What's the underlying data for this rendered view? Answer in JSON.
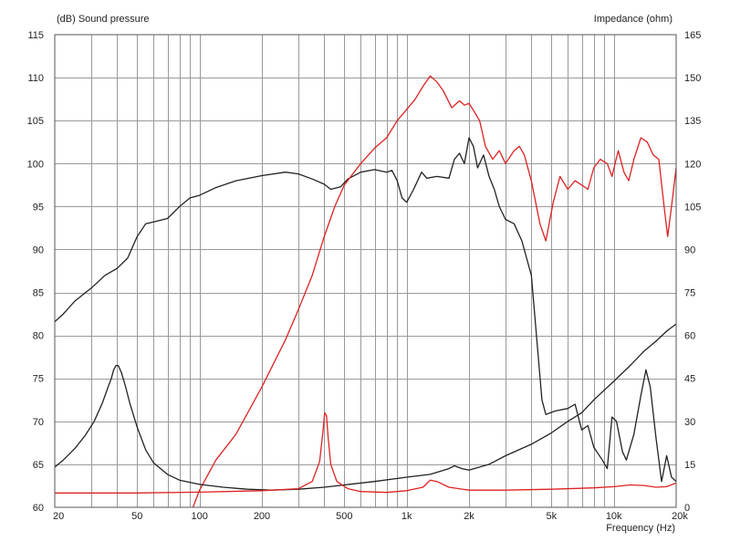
{
  "chart_data": {
    "type": "line",
    "xscale": "log",
    "xlim": [
      20,
      20000
    ],
    "ylim_left": [
      60,
      115
    ],
    "ylim_right": [
      0,
      165
    ],
    "grid": true,
    "ylabel_left": "(dB)  Sound pressure",
    "ylabel_right": "Impedance  (ohm)",
    "xlabel": "Frequency  (Hz)",
    "x_ticks": [
      {
        "value": 20,
        "label": "20"
      },
      {
        "value": 50,
        "label": "50"
      },
      {
        "value": 100,
        "label": "100"
      },
      {
        "value": 200,
        "label": "200"
      },
      {
        "value": 500,
        "label": "500"
      },
      {
        "value": 1000,
        "label": "1k"
      },
      {
        "value": 2000,
        "label": "2k"
      },
      {
        "value": 5000,
        "label": "5k"
      },
      {
        "value": 10000,
        "label": "10k"
      },
      {
        "value": 20000,
        "label": "20k"
      }
    ],
    "y_left_ticks": [
      "60",
      "65",
      "70",
      "75",
      "80",
      "85",
      "90",
      "95",
      "100",
      "105",
      "110",
      "115"
    ],
    "y_right_ticks": [
      "0",
      "15",
      "30",
      "45",
      "60",
      "75",
      "90",
      "105",
      "120",
      "135",
      "150",
      "165"
    ],
    "series": [
      {
        "color": "#222222",
        "axis": "left",
        "points": [
          [
            20,
            81.6
          ],
          [
            22,
            82.5
          ],
          [
            25,
            84.0
          ],
          [
            30,
            85.5
          ],
          [
            35,
            87.0
          ],
          [
            40,
            87.8
          ],
          [
            45,
            89.0
          ],
          [
            50,
            91.5
          ],
          [
            55,
            93.0
          ],
          [
            60,
            93.2
          ],
          [
            70,
            93.6
          ],
          [
            80,
            95.0
          ],
          [
            90,
            96.0
          ],
          [
            100,
            96.3
          ],
          [
            120,
            97.2
          ],
          [
            150,
            98.0
          ],
          [
            200,
            98.6
          ],
          [
            260,
            99.0
          ],
          [
            300,
            98.8
          ],
          [
            350,
            98.2
          ],
          [
            400,
            97.6
          ],
          [
            430,
            97.0
          ],
          [
            480,
            97.3
          ],
          [
            520,
            98.2
          ],
          [
            600,
            99.0
          ],
          [
            700,
            99.3
          ],
          [
            800,
            99.0
          ],
          [
            850,
            99.2
          ],
          [
            900,
            98.0
          ],
          [
            950,
            96.0
          ],
          [
            1000,
            95.5
          ],
          [
            1080,
            97.0
          ],
          [
            1180,
            99.0
          ],
          [
            1250,
            98.3
          ],
          [
            1400,
            98.5
          ],
          [
            1600,
            98.3
          ],
          [
            1700,
            100.5
          ],
          [
            1800,
            101.2
          ],
          [
            1900,
            100.0
          ],
          [
            2000,
            103.0
          ],
          [
            2100,
            102.0
          ],
          [
            2200,
            99.5
          ],
          [
            2350,
            101.0
          ],
          [
            2500,
            98.5
          ],
          [
            2650,
            97.0
          ],
          [
            2800,
            95.0
          ],
          [
            3000,
            93.5
          ],
          [
            3300,
            93.0
          ],
          [
            3600,
            91.0
          ],
          [
            4000,
            87.0
          ],
          [
            4300,
            78.0
          ],
          [
            4500,
            72.5
          ],
          [
            4700,
            70.8
          ],
          [
            5200,
            71.2
          ],
          [
            6000,
            71.5
          ],
          [
            6500,
            72.0
          ],
          [
            7000,
            69.0
          ],
          [
            7500,
            69.5
          ],
          [
            8000,
            67.0
          ],
          [
            8800,
            65.5
          ],
          [
            9300,
            64.5
          ],
          [
            9800,
            70.5
          ],
          [
            10300,
            70.0
          ],
          [
            11000,
            66.5
          ],
          [
            11500,
            65.5
          ],
          [
            12500,
            68.5
          ],
          [
            13500,
            73.0
          ],
          [
            14300,
            76.0
          ],
          [
            15000,
            74.0
          ],
          [
            16000,
            68.0
          ],
          [
            17000,
            63.0
          ],
          [
            18000,
            66.0
          ],
          [
            19000,
            63.5
          ],
          [
            20000,
            63.0
          ]
        ]
      },
      {
        "color": "#dd2222",
        "axis": "left",
        "points": [
          [
            93,
            60.0
          ],
          [
            100,
            62.0
          ],
          [
            120,
            65.5
          ],
          [
            150,
            68.5
          ],
          [
            200,
            74.0
          ],
          [
            260,
            79.5
          ],
          [
            300,
            83.0
          ],
          [
            350,
            87.0
          ],
          [
            400,
            91.5
          ],
          [
            450,
            95.0
          ],
          [
            500,
            97.5
          ],
          [
            600,
            100.0
          ],
          [
            700,
            101.8
          ],
          [
            800,
            103.0
          ],
          [
            900,
            105.0
          ],
          [
            1000,
            106.3
          ],
          [
            1100,
            107.5
          ],
          [
            1200,
            109.0
          ],
          [
            1300,
            110.2
          ],
          [
            1400,
            109.5
          ],
          [
            1500,
            108.5
          ],
          [
            1650,
            106.5
          ],
          [
            1800,
            107.3
          ],
          [
            1900,
            106.8
          ],
          [
            2000,
            107.0
          ],
          [
            2100,
            106.2
          ],
          [
            2250,
            105.0
          ],
          [
            2400,
            102.0
          ],
          [
            2600,
            100.5
          ],
          [
            2800,
            101.5
          ],
          [
            3000,
            100.0
          ],
          [
            3300,
            101.5
          ],
          [
            3500,
            102.0
          ],
          [
            3700,
            101.0
          ],
          [
            4000,
            98.0
          ],
          [
            4400,
            93.0
          ],
          [
            4700,
            91.0
          ],
          [
            5100,
            95.5
          ],
          [
            5500,
            98.5
          ],
          [
            6000,
            97.0
          ],
          [
            6500,
            98.0
          ],
          [
            7000,
            97.5
          ],
          [
            7500,
            97.0
          ],
          [
            8000,
            99.5
          ],
          [
            8600,
            100.5
          ],
          [
            9300,
            100.0
          ],
          [
            9800,
            98.5
          ],
          [
            10500,
            101.5
          ],
          [
            11200,
            99.0
          ],
          [
            11800,
            98.0
          ],
          [
            12500,
            100.5
          ],
          [
            13500,
            103.0
          ],
          [
            14500,
            102.5
          ],
          [
            15500,
            101.0
          ],
          [
            16500,
            100.5
          ],
          [
            17500,
            95.0
          ],
          [
            18200,
            91.5
          ],
          [
            19000,
            95.0
          ],
          [
            20000,
            99.5
          ]
        ]
      },
      {
        "color": "#222222",
        "axis": "right",
        "points": [
          [
            20,
            14.0
          ],
          [
            22,
            16.5
          ],
          [
            25,
            20.5
          ],
          [
            28,
            25.0
          ],
          [
            31,
            30.0
          ],
          [
            34,
            36.5
          ],
          [
            36,
            41.5
          ],
          [
            37.5,
            45.0
          ],
          [
            38.5,
            48.0
          ],
          [
            39.5,
            49.5
          ],
          [
            40.5,
            49.5
          ],
          [
            42,
            47.0
          ],
          [
            44,
            42.0
          ],
          [
            46,
            36.5
          ],
          [
            50,
            28.0
          ],
          [
            55,
            20.0
          ],
          [
            60,
            15.5
          ],
          [
            70,
            11.5
          ],
          [
            80,
            9.5
          ],
          [
            100,
            8.0
          ],
          [
            130,
            7.0
          ],
          [
            170,
            6.3
          ],
          [
            220,
            6.0
          ],
          [
            300,
            6.3
          ],
          [
            400,
            7.0
          ],
          [
            500,
            7.8
          ],
          [
            700,
            9.0
          ],
          [
            1000,
            10.5
          ],
          [
            1300,
            11.5
          ],
          [
            1600,
            13.5
          ],
          [
            1700,
            14.5
          ],
          [
            1850,
            13.5
          ],
          [
            2000,
            13.0
          ],
          [
            2500,
            15.0
          ],
          [
            3000,
            18.0
          ],
          [
            4000,
            22.0
          ],
          [
            5000,
            26.0
          ],
          [
            6000,
            30.0
          ],
          [
            7000,
            33.0
          ],
          [
            8000,
            37.5
          ],
          [
            10000,
            44.0
          ],
          [
            12000,
            49.5
          ],
          [
            14000,
            54.5
          ],
          [
            16000,
            58.0
          ],
          [
            18000,
            61.5
          ],
          [
            20000,
            64.0
          ]
        ]
      },
      {
        "color": "#dd2222",
        "axis": "right",
        "points": [
          [
            20,
            5.0
          ],
          [
            50,
            5.0
          ],
          [
            100,
            5.3
          ],
          [
            200,
            5.8
          ],
          [
            300,
            6.5
          ],
          [
            350,
            9.0
          ],
          [
            380,
            16.0
          ],
          [
            395,
            27.0
          ],
          [
            402,
            33.0
          ],
          [
            410,
            32.0
          ],
          [
            418,
            24.0
          ],
          [
            430,
            15.0
          ],
          [
            460,
            9.0
          ],
          [
            520,
            6.5
          ],
          [
            600,
            5.5
          ],
          [
            800,
            5.2
          ],
          [
            1000,
            5.8
          ],
          [
            1200,
            7.0
          ],
          [
            1300,
            9.5
          ],
          [
            1400,
            9.0
          ],
          [
            1600,
            7.0
          ],
          [
            2000,
            6.0
          ],
          [
            3000,
            6.0
          ],
          [
            5000,
            6.3
          ],
          [
            8000,
            6.8
          ],
          [
            10000,
            7.2
          ],
          [
            12000,
            7.8
          ],
          [
            14000,
            7.6
          ],
          [
            16000,
            7.0
          ],
          [
            18000,
            7.2
          ],
          [
            20000,
            8.5
          ]
        ]
      }
    ]
  }
}
